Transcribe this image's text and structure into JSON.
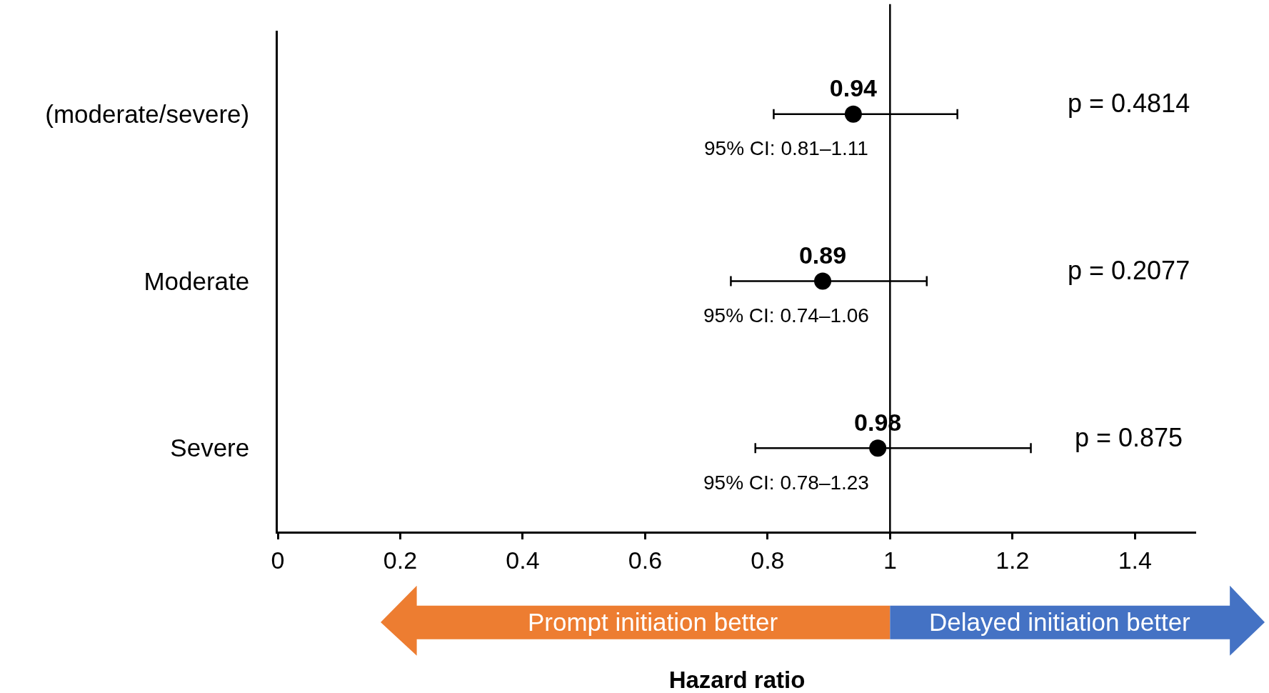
{
  "chart_data": {
    "type": "scatter",
    "orientation": "horizontal",
    "xlabel": "Hazard ratio",
    "categories": [
      "(moderate/severe)",
      "Moderate",
      "Severe"
    ],
    "values": [
      0.94,
      0.89,
      0.98
    ],
    "errors": [
      [
        0.81,
        1.11
      ],
      [
        0.74,
        1.06
      ],
      [
        0.78,
        1.23
      ]
    ],
    "color": "#000000",
    "marker": "circle",
    "data_labels": true,
    "xlim": [
      0,
      1.5
    ],
    "xticks": [
      0,
      0.2,
      0.4,
      0.6,
      0.8,
      1,
      1.2,
      1.4
    ],
    "ref_lines": [
      {
        "axis": "x",
        "value": 1,
        "color": "#000000"
      }
    ],
    "annotations": [
      "95% CI: 0.81–1.11",
      "95% CI: 0.74–1.06",
      "95% CI: 0.78–1.23",
      "p = 0.4814",
      "p = 0.2077",
      "p = 0.875",
      "Prompt initiation better",
      "Delayed initiation better"
    ]
  }
}
